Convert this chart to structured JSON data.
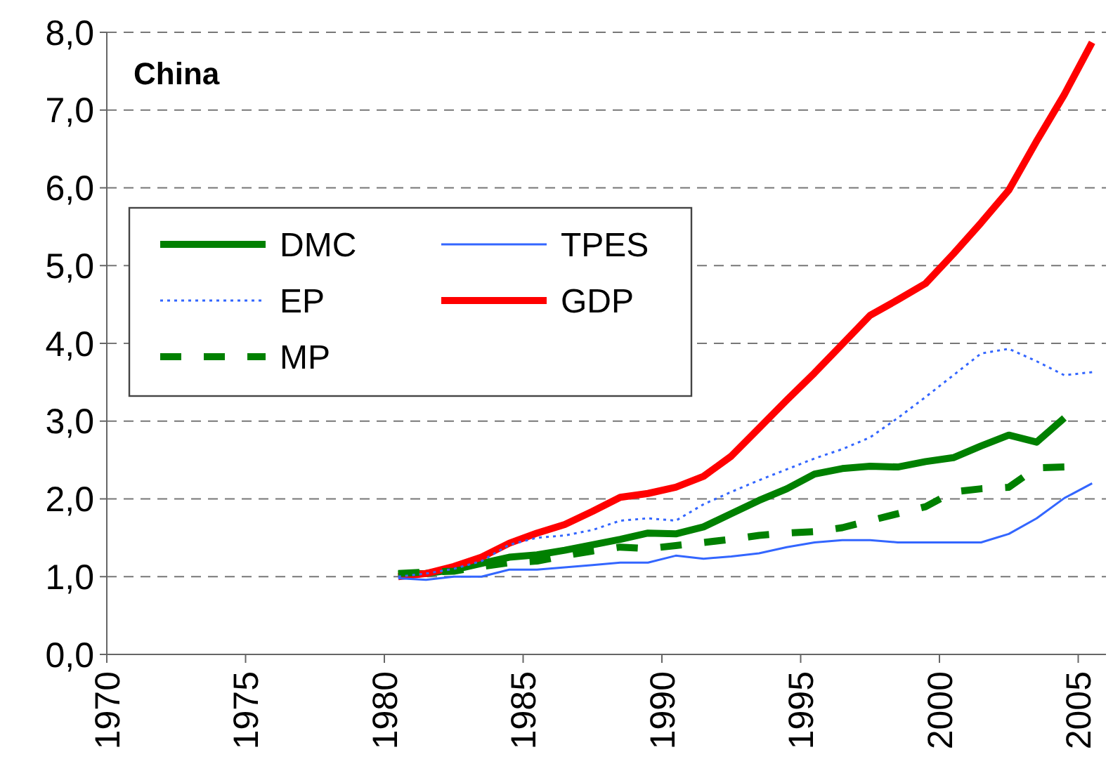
{
  "chart_data": {
    "type": "line",
    "title": "China",
    "x": [
      1980.5,
      1981.5,
      1982.5,
      1983.5,
      1984.5,
      1985.5,
      1986.5,
      1987.5,
      1988.5,
      1989.5,
      1990.5,
      1991.5,
      1992.5,
      1993.5,
      1994.5,
      1995.5,
      1996.5,
      1997.5,
      1998.5,
      1999.5,
      2000.5,
      2001.5,
      2002.5,
      2003.5,
      2004.5,
      2005.5
    ],
    "series": [
      {
        "name": "DMC",
        "color": "#008000",
        "line_style": "solid",
        "values": [
          1.03,
          1.04,
          1.09,
          1.17,
          1.25,
          1.28,
          1.34,
          1.41,
          1.48,
          1.56,
          1.55,
          1.64,
          1.81,
          1.98,
          2.13,
          2.32,
          2.39,
          2.42,
          2.41,
          2.48,
          2.53,
          2.68,
          2.82,
          2.73,
          3.04,
          null
        ]
      },
      {
        "name": "TPES",
        "color": "#3366ff",
        "line_style": "solid",
        "values": [
          0.98,
          0.96,
          1.0,
          1.0,
          1.09,
          1.09,
          1.12,
          1.15,
          1.18,
          1.18,
          1.27,
          1.23,
          1.26,
          1.3,
          1.38,
          1.44,
          1.47,
          1.47,
          1.44,
          1.44,
          1.44,
          1.44,
          1.55,
          1.75,
          2.01,
          2.2
        ]
      },
      {
        "name": "EP",
        "color": "#3366ff",
        "line_style": "dotted",
        "values": [
          1.0,
          1.04,
          1.1,
          1.2,
          1.41,
          1.5,
          1.53,
          1.6,
          1.72,
          1.75,
          1.72,
          1.93,
          2.09,
          2.24,
          2.38,
          2.52,
          2.64,
          2.79,
          3.04,
          3.31,
          3.59,
          3.87,
          3.93,
          3.77,
          3.59,
          3.63
        ]
      },
      {
        "name": "GDP",
        "color": "#ff0000",
        "line_style": "solid",
        "values": [
          1.0,
          1.04,
          1.13,
          1.25,
          1.43,
          1.56,
          1.67,
          1.84,
          2.02,
          2.07,
          2.15,
          2.29,
          2.55,
          2.91,
          3.27,
          3.62,
          3.99,
          4.36,
          4.56,
          4.77,
          5.15,
          5.55,
          5.97,
          6.6,
          7.2,
          7.87
        ]
      },
      {
        "name": "MP",
        "color": "#008000",
        "line_style": "dashed",
        "values": [
          1.04,
          1.06,
          1.07,
          1.13,
          1.18,
          1.2,
          1.27,
          1.33,
          1.38,
          1.36,
          1.4,
          1.44,
          1.48,
          1.53,
          1.56,
          1.58,
          1.63,
          1.72,
          1.81,
          1.9,
          2.09,
          2.13,
          2.15,
          2.4,
          2.41,
          null
        ]
      }
    ],
    "xlim": [
      1970,
      2006
    ],
    "xticks": [
      1970,
      1975,
      1980,
      1985,
      1990,
      1995,
      2000,
      2005
    ],
    "ylim": [
      0,
      8
    ],
    "yticks": [
      {
        "value": 0,
        "label": "0,0"
      },
      {
        "value": 1,
        "label": "1,0"
      },
      {
        "value": 2,
        "label": "2,0"
      },
      {
        "value": 3,
        "label": "3,0"
      },
      {
        "value": 4,
        "label": "4,0"
      },
      {
        "value": 5,
        "label": "5,0"
      },
      {
        "value": 6,
        "label": "6,0"
      },
      {
        "value": 7,
        "label": "7,0"
      },
      {
        "value": 8,
        "label": "8,0"
      }
    ],
    "grid": "y",
    "legend": "top left",
    "marker": "none"
  }
}
